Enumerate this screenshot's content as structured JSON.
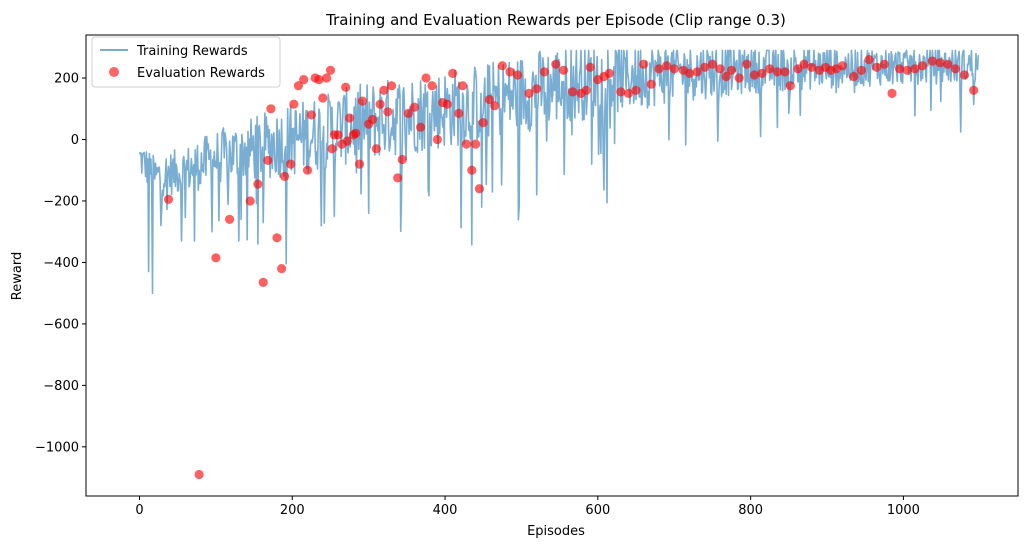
{
  "chart_data": {
    "type": "line+scatter",
    "title": "Training and Evaluation Rewards per Episode (Clip range 0.3)",
    "xlabel": "Episodes",
    "ylabel": "Reward",
    "xlim": [
      -70,
      1150
    ],
    "ylim": [
      -1160,
      340
    ],
    "xticks": [
      0,
      200,
      400,
      600,
      800,
      1000
    ],
    "yticks": [
      -1000,
      -800,
      -600,
      -400,
      -200,
      0,
      200
    ],
    "grid": false,
    "legend_position": "upper-left",
    "colors": {
      "training": "#1f77b4",
      "evaluation": "#ff0000"
    },
    "series": [
      {
        "name": "Training Rewards",
        "kind": "line",
        "episodes": 1100,
        "trend_x": [
          0,
          20,
          60,
          100,
          150,
          200,
          250,
          300,
          350,
          400,
          450,
          500,
          550,
          600,
          650,
          700,
          800,
          900,
          1000,
          1100
        ],
        "trend_y": [
          -60,
          -120,
          -100,
          -60,
          -30,
          0,
          30,
          60,
          80,
          100,
          120,
          150,
          180,
          200,
          210,
          220,
          230,
          235,
          240,
          240
        ],
        "band_x": [
          0,
          100,
          200,
          300,
          400,
          500,
          600,
          700,
          800,
          900,
          1000,
          1100
        ],
        "band_y": [
          60,
          90,
          120,
          130,
          130,
          130,
          130,
          100,
          80,
          70,
          60,
          60
        ],
        "extremes": [
          {
            "x": 12,
            "y": -430
          },
          {
            "x": 17,
            "y": -500
          },
          {
            "x": 28,
            "y": -280
          },
          {
            "x": 55,
            "y": -330
          },
          {
            "x": 72,
            "y": -330
          },
          {
            "x": 95,
            "y": -300
          },
          {
            "x": 130,
            "y": -330
          },
          {
            "x": 155,
            "y": -340
          },
          {
            "x": 255,
            "y": -250
          },
          {
            "x": 300,
            "y": -240
          },
          {
            "x": 448,
            "y": -220
          },
          {
            "x": 520,
            "y": -180
          },
          {
            "x": 592,
            "y": -80
          },
          {
            "x": 1075,
            "y": 25
          }
        ]
      },
      {
        "name": "Evaluation Rewards",
        "kind": "scatter",
        "points": [
          [
            38,
            -195
          ],
          [
            78,
            -1090
          ],
          [
            100,
            -385
          ],
          [
            118,
            -260
          ],
          [
            145,
            -200
          ],
          [
            155,
            -145
          ],
          [
            162,
            -465
          ],
          [
            168,
            -68
          ],
          [
            172,
            100
          ],
          [
            180,
            -320
          ],
          [
            186,
            -420
          ],
          [
            190,
            -120
          ],
          [
            198,
            -80
          ],
          [
            202,
            115
          ],
          [
            208,
            175
          ],
          [
            215,
            195
          ],
          [
            220,
            -100
          ],
          [
            225,
            80
          ],
          [
            230,
            200
          ],
          [
            235,
            195
          ],
          [
            240,
            135
          ],
          [
            245,
            200
          ],
          [
            250,
            225
          ],
          [
            252,
            -30
          ],
          [
            255,
            15
          ],
          [
            260,
            15
          ],
          [
            265,
            -15
          ],
          [
            270,
            170
          ],
          [
            272,
            -5
          ],
          [
            275,
            70
          ],
          [
            280,
            15
          ],
          [
            283,
            20
          ],
          [
            288,
            -80
          ],
          [
            292,
            125
          ],
          [
            300,
            50
          ],
          [
            305,
            65
          ],
          [
            310,
            -30
          ],
          [
            315,
            115
          ],
          [
            320,
            160
          ],
          [
            325,
            90
          ],
          [
            330,
            175
          ],
          [
            338,
            -125
          ],
          [
            344,
            -65
          ],
          [
            352,
            85
          ],
          [
            360,
            105
          ],
          [
            368,
            40
          ],
          [
            375,
            200
          ],
          [
            383,
            175
          ],
          [
            390,
            0
          ],
          [
            397,
            120
          ],
          [
            403,
            115
          ],
          [
            410,
            215
          ],
          [
            418,
            85
          ],
          [
            423,
            175
          ],
          [
            428,
            -15
          ],
          [
            435,
            -100
          ],
          [
            440,
            -15
          ],
          [
            445,
            -160
          ],
          [
            450,
            55
          ],
          [
            458,
            130
          ],
          [
            465,
            110
          ],
          [
            475,
            240
          ],
          [
            485,
            220
          ],
          [
            495,
            210
          ],
          [
            510,
            150
          ],
          [
            520,
            165
          ],
          [
            530,
            220
          ],
          [
            545,
            245
          ],
          [
            555,
            225
          ],
          [
            567,
            155
          ],
          [
            578,
            150
          ],
          [
            585,
            160
          ],
          [
            590,
            235
          ],
          [
            600,
            195
          ],
          [
            608,
            205
          ],
          [
            615,
            215
          ],
          [
            630,
            155
          ],
          [
            640,
            150
          ],
          [
            650,
            160
          ],
          [
            660,
            245
          ],
          [
            670,
            180
          ],
          [
            680,
            230
          ],
          [
            690,
            240
          ],
          [
            700,
            230
          ],
          [
            712,
            225
          ],
          [
            720,
            215
          ],
          [
            730,
            220
          ],
          [
            740,
            235
          ],
          [
            750,
            245
          ],
          [
            760,
            230
          ],
          [
            768,
            205
          ],
          [
            775,
            225
          ],
          [
            785,
            200
          ],
          [
            795,
            245
          ],
          [
            805,
            210
          ],
          [
            815,
            215
          ],
          [
            825,
            230
          ],
          [
            835,
            220
          ],
          [
            845,
            220
          ],
          [
            852,
            175
          ],
          [
            862,
            230
          ],
          [
            870,
            245
          ],
          [
            880,
            235
          ],
          [
            890,
            225
          ],
          [
            898,
            235
          ],
          [
            905,
            225
          ],
          [
            912,
            230
          ],
          [
            920,
            240
          ],
          [
            935,
            205
          ],
          [
            945,
            225
          ],
          [
            955,
            260
          ],
          [
            965,
            235
          ],
          [
            975,
            245
          ],
          [
            985,
            150
          ],
          [
            995,
            230
          ],
          [
            1005,
            225
          ],
          [
            1015,
            230
          ],
          [
            1025,
            240
          ],
          [
            1038,
            255
          ],
          [
            1048,
            250
          ],
          [
            1058,
            245
          ],
          [
            1068,
            230
          ],
          [
            1080,
            210
          ],
          [
            1092,
            160
          ]
        ]
      }
    ]
  }
}
